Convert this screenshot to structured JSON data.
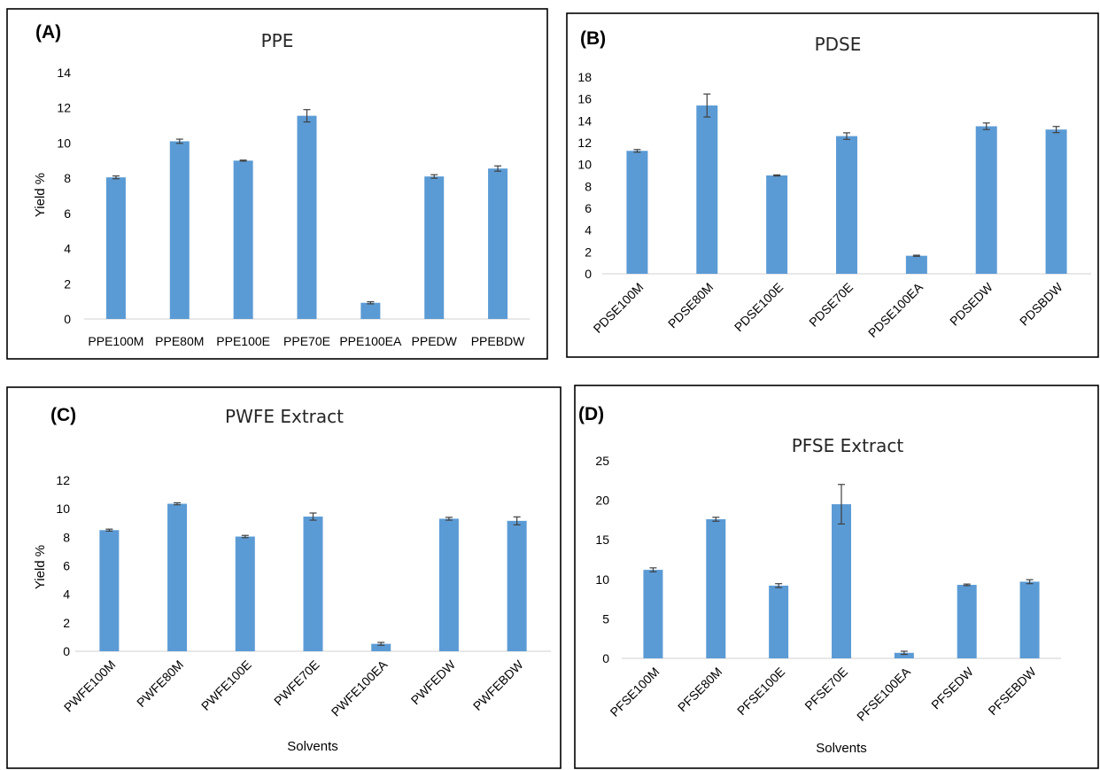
{
  "colors": {
    "bar": "#5b9bd5",
    "error_bar": "#404040",
    "axis": "#d0d0d0",
    "frame": "#000000"
  },
  "panels": [
    {
      "tag": "(A)",
      "chart_data": {
        "type": "bar",
        "title": "PPE",
        "xlabel": "",
        "ylabel": "Yield %",
        "categories": [
          "PPE100M",
          "PPE80M",
          "PPE100E",
          "PPE70E",
          "PPE100EA",
          "PPEDW",
          "PPEBDW"
        ],
        "values": [
          8.05,
          10.1,
          9.0,
          11.55,
          0.92,
          8.1,
          8.55
        ],
        "errors": [
          0.08,
          0.12,
          0.03,
          0.35,
          0.06,
          0.1,
          0.15
        ],
        "ylim": [
          0,
          14
        ],
        "yticks": [
          0,
          2,
          4,
          6,
          8,
          10,
          12,
          14
        ],
        "rotated_labels": false,
        "grid": false
      }
    },
    {
      "tag": "(B)",
      "chart_data": {
        "type": "bar",
        "title": "PDSE",
        "xlabel": "",
        "ylabel": "",
        "categories": [
          "PDSE100M",
          "PDSE80M",
          "PDSE100E",
          "PDSE70E",
          "PDSE100EA",
          "PDSEDW",
          "PDSBDW"
        ],
        "values": [
          11.25,
          15.4,
          9.0,
          12.6,
          1.65,
          13.5,
          13.2
        ],
        "errors": [
          0.12,
          1.05,
          0.05,
          0.3,
          0.05,
          0.3,
          0.28
        ],
        "ylim": [
          0,
          18
        ],
        "yticks": [
          0,
          2,
          4,
          6,
          8,
          10,
          12,
          14,
          16,
          18
        ],
        "rotated_labels": true,
        "grid": false
      }
    },
    {
      "tag": "(C)",
      "chart_data": {
        "type": "bar",
        "title": "PWFE Extract",
        "xlabel": "Solvents",
        "ylabel": "Yield %",
        "categories": [
          "PWFE100M",
          "PWFE80M",
          "PWFE100E",
          "PWFE70E",
          "PWFE100EA",
          "PWFEDW",
          "PWFEBDW"
        ],
        "values": [
          8.5,
          10.35,
          8.05,
          9.45,
          0.52,
          9.3,
          9.15
        ],
        "errors": [
          0.07,
          0.07,
          0.08,
          0.25,
          0.1,
          0.1,
          0.28
        ],
        "ylim": [
          0,
          12
        ],
        "yticks": [
          0,
          2,
          4,
          6,
          8,
          10,
          12
        ],
        "rotated_labels": true,
        "grid": false
      }
    },
    {
      "tag": "(D)",
      "chart_data": {
        "type": "bar",
        "title": "PFSE Extract",
        "xlabel": "Solvents",
        "ylabel": "",
        "categories": [
          "PFSE100M",
          "PFSE80M",
          "PFSE100E",
          "PFSE70E",
          "PFSE100EA",
          "PFSEDW",
          "PFSEBDW"
        ],
        "values": [
          11.2,
          17.6,
          9.2,
          19.5,
          0.7,
          9.3,
          9.7
        ],
        "errors": [
          0.25,
          0.25,
          0.25,
          2.5,
          0.2,
          0.1,
          0.25
        ],
        "ylim": [
          0,
          25
        ],
        "yticks": [
          0,
          5,
          10,
          15,
          20,
          25
        ],
        "rotated_labels": true,
        "grid": false
      }
    }
  ]
}
